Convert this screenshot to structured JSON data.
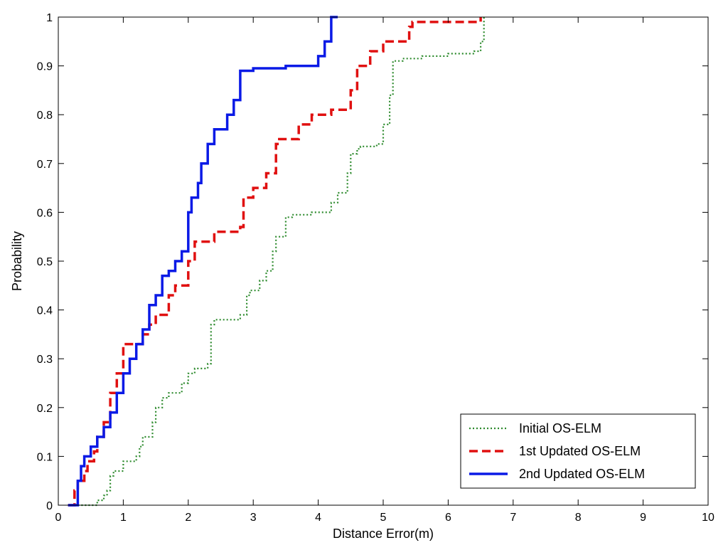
{
  "chart_data": {
    "type": "line",
    "title": "",
    "xlabel": "Distance Error(m)",
    "ylabel": "Probability",
    "xlim": [
      0,
      10
    ],
    "ylim": [
      0,
      1
    ],
    "xticks": [
      0,
      1,
      2,
      3,
      4,
      5,
      6,
      7,
      8,
      9,
      10
    ],
    "yticks": [
      0,
      0.1,
      0.2,
      0.3,
      0.4,
      0.5,
      0.6,
      0.7,
      0.8,
      0.9,
      1
    ],
    "grid": false,
    "legend": "bottom-right",
    "series": [
      {
        "name": "Initial OS-ELM",
        "color": "#2E8B2E",
        "style": "dotted",
        "x": [
          0.3,
          0.6,
          0.7,
          0.75,
          0.8,
          0.85,
          1.0,
          1.2,
          1.25,
          1.3,
          1.45,
          1.5,
          1.6,
          1.7,
          1.9,
          2.0,
          2.1,
          2.3,
          2.35,
          2.4,
          2.8,
          2.9,
          2.95,
          3.1,
          3.2,
          3.3,
          3.35,
          3.5,
          3.6,
          3.9,
          4.2,
          4.3,
          4.45,
          4.5,
          4.6,
          4.65,
          4.9,
          5.0,
          5.1,
          5.15,
          5.3,
          5.6,
          6.0,
          6.4,
          6.5,
          6.55
        ],
        "y": [
          0.0,
          0.01,
          0.02,
          0.03,
          0.06,
          0.07,
          0.09,
          0.1,
          0.12,
          0.14,
          0.17,
          0.2,
          0.22,
          0.23,
          0.25,
          0.27,
          0.28,
          0.29,
          0.37,
          0.38,
          0.39,
          0.43,
          0.44,
          0.46,
          0.48,
          0.52,
          0.55,
          0.59,
          0.595,
          0.6,
          0.62,
          0.64,
          0.68,
          0.72,
          0.73,
          0.735,
          0.74,
          0.78,
          0.84,
          0.91,
          0.915,
          0.92,
          0.925,
          0.93,
          0.95,
          1.0
        ]
      },
      {
        "name": "1st Updated OS-ELM",
        "color": "#E01010",
        "style": "dashed",
        "x": [
          0.15,
          0.25,
          0.3,
          0.4,
          0.45,
          0.55,
          0.6,
          0.7,
          0.8,
          0.9,
          1.0,
          1.3,
          1.4,
          1.5,
          1.7,
          1.8,
          2.0,
          2.1,
          2.4,
          2.8,
          2.85,
          3.0,
          3.2,
          3.35,
          3.4,
          3.7,
          3.9,
          4.2,
          4.5,
          4.6,
          4.8,
          5.0,
          5.4,
          5.45,
          6.5
        ],
        "y": [
          0.0,
          0.03,
          0.05,
          0.07,
          0.09,
          0.11,
          0.14,
          0.17,
          0.23,
          0.27,
          0.33,
          0.35,
          0.37,
          0.39,
          0.43,
          0.45,
          0.5,
          0.54,
          0.56,
          0.57,
          0.63,
          0.65,
          0.68,
          0.74,
          0.75,
          0.78,
          0.8,
          0.81,
          0.85,
          0.9,
          0.93,
          0.95,
          0.98,
          0.99,
          1.0
        ]
      },
      {
        "name": "2nd Updated OS-ELM",
        "color": "#0A1AE6",
        "style": "solid",
        "x": [
          0.15,
          0.3,
          0.35,
          0.4,
          0.5,
          0.6,
          0.7,
          0.8,
          0.9,
          1.0,
          1.1,
          1.2,
          1.3,
          1.4,
          1.5,
          1.6,
          1.7,
          1.8,
          1.9,
          2.0,
          2.05,
          2.15,
          2.2,
          2.3,
          2.4,
          2.6,
          2.7,
          2.8,
          3.0,
          3.5,
          3.9,
          4.0,
          4.1,
          4.2,
          4.3
        ],
        "y": [
          0.0,
          0.05,
          0.08,
          0.1,
          0.12,
          0.14,
          0.16,
          0.19,
          0.23,
          0.27,
          0.3,
          0.33,
          0.36,
          0.41,
          0.43,
          0.47,
          0.48,
          0.5,
          0.52,
          0.6,
          0.63,
          0.66,
          0.7,
          0.74,
          0.77,
          0.8,
          0.83,
          0.89,
          0.895,
          0.9,
          0.9,
          0.92,
          0.95,
          1.0,
          1.0
        ]
      }
    ]
  }
}
